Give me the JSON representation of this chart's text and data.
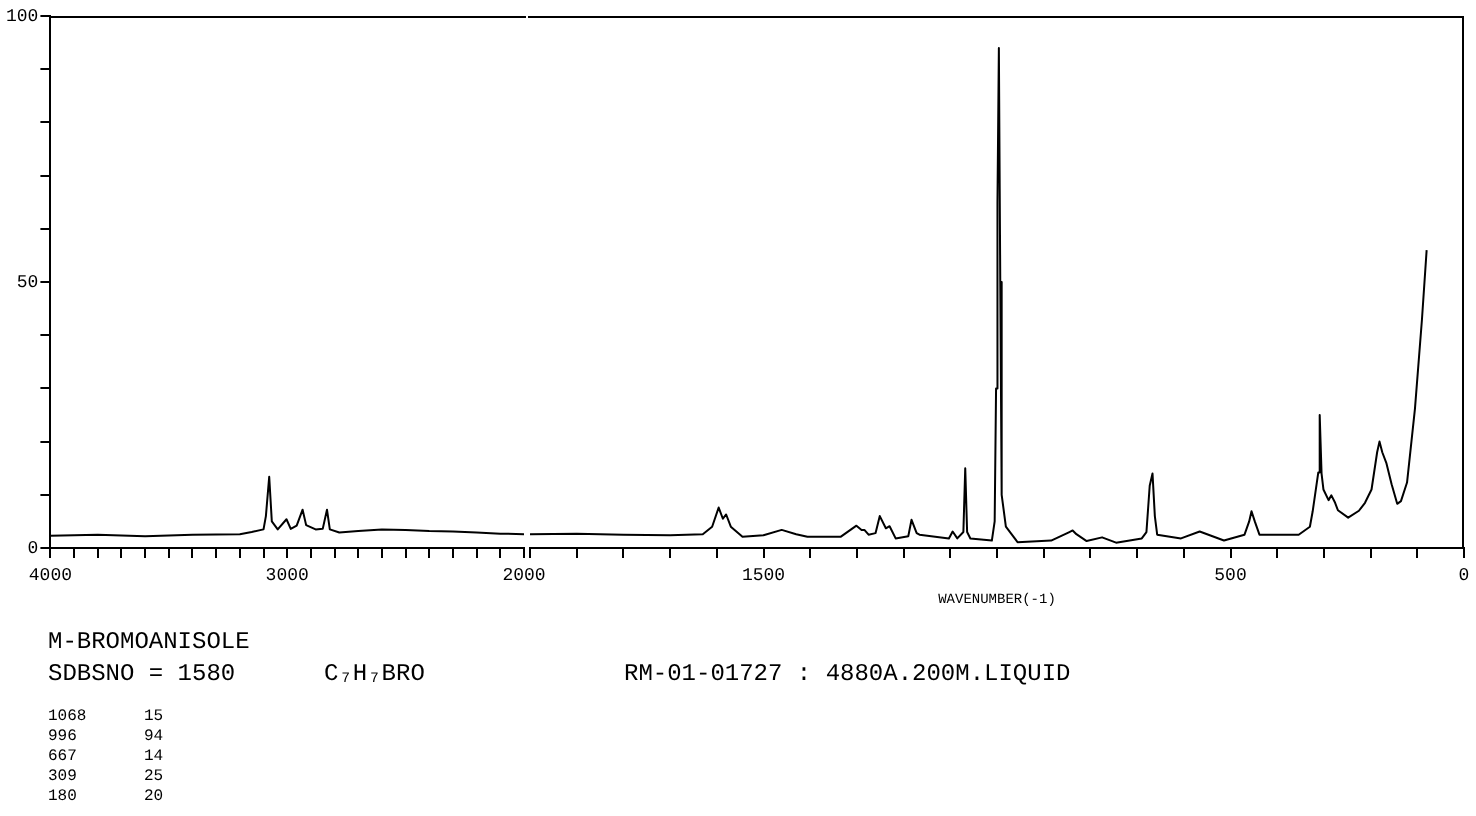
{
  "chart_data": [
    {
      "type": "line",
      "title": "M-BROMOANISOLE",
      "annotations": [
        "SDBSNO = 1580",
        "C₇H₇BRO",
        "RM-01-01727 : 4880A.200M.LIQUID",
        "1068      15",
        "996       94",
        "667       14",
        "309       25",
        "180       20"
      ],
      "xlim": [
        4000,
        2000
      ],
      "xticks": [
        4000,
        {
          "value": 3900,
          "label": null
        },
        {
          "value": 3800,
          "label": null
        },
        {
          "value": 3700,
          "label": null
        },
        {
          "value": 3600,
          "label": null
        },
        {
          "value": 3500,
          "label": null
        },
        {
          "value": 3400,
          "label": null
        },
        {
          "value": 3300,
          "label": null
        },
        {
          "value": 3200,
          "label": null
        },
        {
          "value": 3100,
          "label": null
        },
        3000,
        {
          "value": 2900,
          "label": null
        },
        {
          "value": 2800,
          "label": null
        },
        {
          "value": 2700,
          "label": null
        },
        {
          "value": 2600,
          "label": null
        },
        {
          "value": 2500,
          "label": null
        },
        {
          "value": 2400,
          "label": null
        },
        {
          "value": 2300,
          "label": null
        },
        {
          "value": 2200,
          "label": null
        },
        {
          "value": 2100,
          "label": null
        },
        2000
      ],
      "ylim": [
        0,
        100
      ],
      "yticks": [
        0,
        {
          "value": 10,
          "label": null
        },
        {
          "value": 20,
          "label": null
        },
        {
          "value": 30,
          "label": null
        },
        {
          "value": 40,
          "label": null
        },
        50,
        {
          "value": 60,
          "label": null
        },
        {
          "value": 70,
          "label": null
        },
        {
          "value": 80,
          "label": null
        },
        {
          "value": 90,
          "label": null
        },
        100
      ],
      "marker": "none",
      "line_style": "solid",
      "series": [
        {
          "color": "#000000",
          "x": [
            4000,
            3800,
            3600,
            3400,
            3200,
            3150,
            3100,
            3090,
            3076,
            3065,
            3040,
            3003,
            2985,
            2960,
            2935,
            2920,
            2880,
            2850,
            2832,
            2820,
            2780,
            2700,
            2600,
            2500,
            2400,
            2300,
            2200,
            2100,
            2000
          ],
          "values": [
            2.3,
            2.5,
            2.2,
            2.5,
            2.6,
            3.0,
            3.5,
            6,
            13.4,
            5,
            3.5,
            5.4,
            3.6,
            4.2,
            7.2,
            4.3,
            3.5,
            3.6,
            7.2,
            3.5,
            2.9,
            3.2,
            3.5,
            3.4,
            3.2,
            3.1,
            2.9,
            2.7,
            2.6
          ]
        }
      ]
    },
    {
      "type": "line",
      "xlabel": "WAVENUMBER(-1)",
      "tick_labels": "x",
      "xlim": [
        2000,
        0
      ],
      "xticks": [
        {
          "value": 2000,
          "label": null
        },
        {
          "value": 1900,
          "label": null
        },
        {
          "value": 1800,
          "label": null
        },
        {
          "value": 1700,
          "label": null
        },
        {
          "value": 1600,
          "label": null
        },
        1500,
        {
          "value": 1400,
          "label": null
        },
        {
          "value": 1300,
          "label": null
        },
        {
          "value": 1200,
          "label": null
        },
        {
          "value": 1100,
          "label": null
        },
        {
          "value": 1000,
          "label": null
        },
        {
          "value": 900,
          "label": null
        },
        {
          "value": 800,
          "label": null
        },
        {
          "value": 700,
          "label": null
        },
        {
          "value": 600,
          "label": null
        },
        500,
        {
          "value": 400,
          "label": null
        },
        {
          "value": 300,
          "label": null
        },
        {
          "value": 200,
          "label": null
        },
        {
          "value": 100,
          "label": null
        },
        0
      ],
      "ylim": [
        0,
        100
      ],
      "marker": "none",
      "line_style": "solid",
      "series": [
        {
          "color": "#000000",
          "x": [
            2000,
            1900,
            1800,
            1700,
            1630,
            1610,
            1596,
            1587,
            1580,
            1570,
            1545,
            1500,
            1461,
            1430,
            1406,
            1335,
            1301,
            1290,
            1284,
            1275,
            1260,
            1251,
            1238,
            1230,
            1217,
            1190,
            1183,
            1172,
            1166,
            1103,
            1095,
            1085,
            1072,
            1068,
            1064,
            1057,
            1011,
            1005,
            1002,
            999,
            996,
            993,
            990,
            981,
            956,
            884,
            845,
            838,
            830,
            808,
            775,
            745,
            690,
            680,
            673,
            667,
            662,
            657,
            606,
            566,
            514,
            470,
            460,
            455,
            448,
            438,
            354,
            330,
            324,
            312,
            309,
            305,
            301,
            290,
            284,
            276,
            270,
            248,
            225,
            212,
            198,
            186,
            181,
            175,
            166,
            155,
            143,
            135,
            122,
            105,
            90,
            80
          ],
          "values": [
            2.6,
            2.7,
            2.5,
            2.4,
            2.6,
            4,
            7.6,
            5.5,
            6.3,
            4,
            2.1,
            2.4,
            3.4,
            2.6,
            2.1,
            2.1,
            4.2,
            3.4,
            3.4,
            2.5,
            2.8,
            6.0,
            3.7,
            4.1,
            1.8,
            2.2,
            5.3,
            2.8,
            2.5,
            1.8,
            3.1,
            1.8,
            3,
            15,
            3,
            1.8,
            1.4,
            5,
            30,
            65,
            94,
            50,
            10,
            4,
            1.1,
            1.4,
            3.0,
            3.3,
            2.6,
            1.3,
            2,
            1,
            1.8,
            3,
            11.7,
            14,
            6,
            2.5,
            1.8,
            3.1,
            1.4,
            2.5,
            5,
            6.9,
            5,
            2.5,
            2.5,
            4,
            6.9,
            14.2,
            25,
            14,
            11,
            9,
            9.9,
            8.5,
            7.1,
            5.7,
            7,
            8.5,
            11,
            18,
            20,
            18,
            15.9,
            12,
            8.3,
            8.8,
            12.3,
            26.2,
            43,
            56
          ]
        }
      ]
    }
  ]
}
